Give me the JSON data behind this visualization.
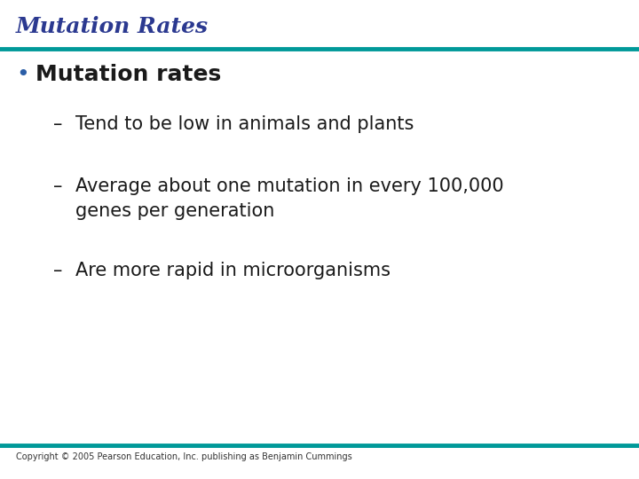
{
  "title": "Mutation Rates",
  "title_color": "#2B3990",
  "title_fontstyle": "italic",
  "title_fontsize": 18,
  "title_fontfamily": "serif",
  "teal_line_color": "#009999",
  "background_color": "#FFFFFF",
  "bullet_text": "Mutation rates",
  "bullet_color": "#1a1a1a",
  "bullet_fontsize": 18,
  "bullet_dot_color": "#2B5EA7",
  "sub_items": [
    "Tend to be low in animals and plants",
    "Average about one mutation in every 100,000\ngenes per generation",
    "Are more rapid in microorganisms"
  ],
  "sub_item_color": "#1a1a1a",
  "sub_item_fontsize": 15,
  "copyright_text": "Copyright © 2005 Pearson Education, Inc. publishing as Benjamin Cummings",
  "copyright_fontsize": 7,
  "copyright_color": "#333333"
}
